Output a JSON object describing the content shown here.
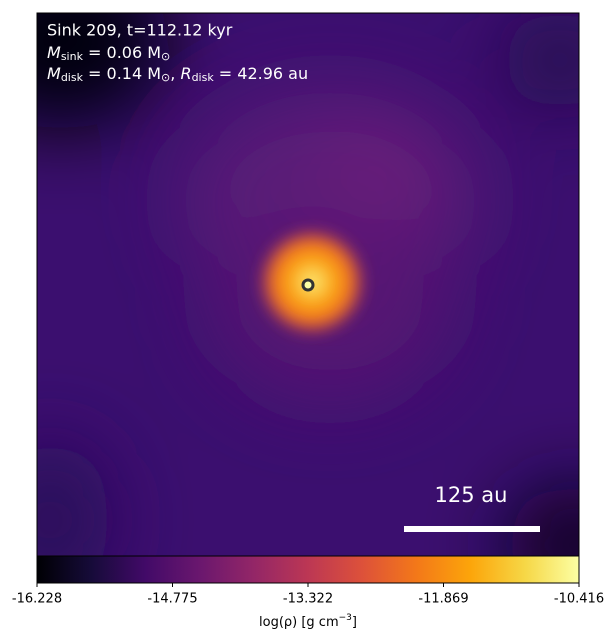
{
  "chart_data": {
    "type": "density-map",
    "annotations": {
      "title": "Sink 209, t=112.12 kyr",
      "sink_mass": {
        "symbol": "M",
        "subscript": "sink",
        "rest": " = 0.06 M",
        "unit_subscript": "⊙"
      },
      "disk": {
        "symbol": "M",
        "subscript": "disk",
        "rest": " = 0.14 M",
        "unit_subscript": "⊙",
        "separator": ", ",
        "symbol2": "R",
        "subscript2": "disk",
        "rest2": " = 42.96 au"
      }
    },
    "scale_bar_label": "125 au",
    "colormap": "inferno",
    "colorbar": {
      "label": {
        "text": "log(ρ) [g cm",
        "superscript": "−3",
        "close": "]"
      },
      "xlim": [
        -16.228,
        -10.416
      ],
      "xticks": [
        -16.228,
        -14.775,
        -13.322,
        -11.869,
        -10.416
      ]
    }
  }
}
